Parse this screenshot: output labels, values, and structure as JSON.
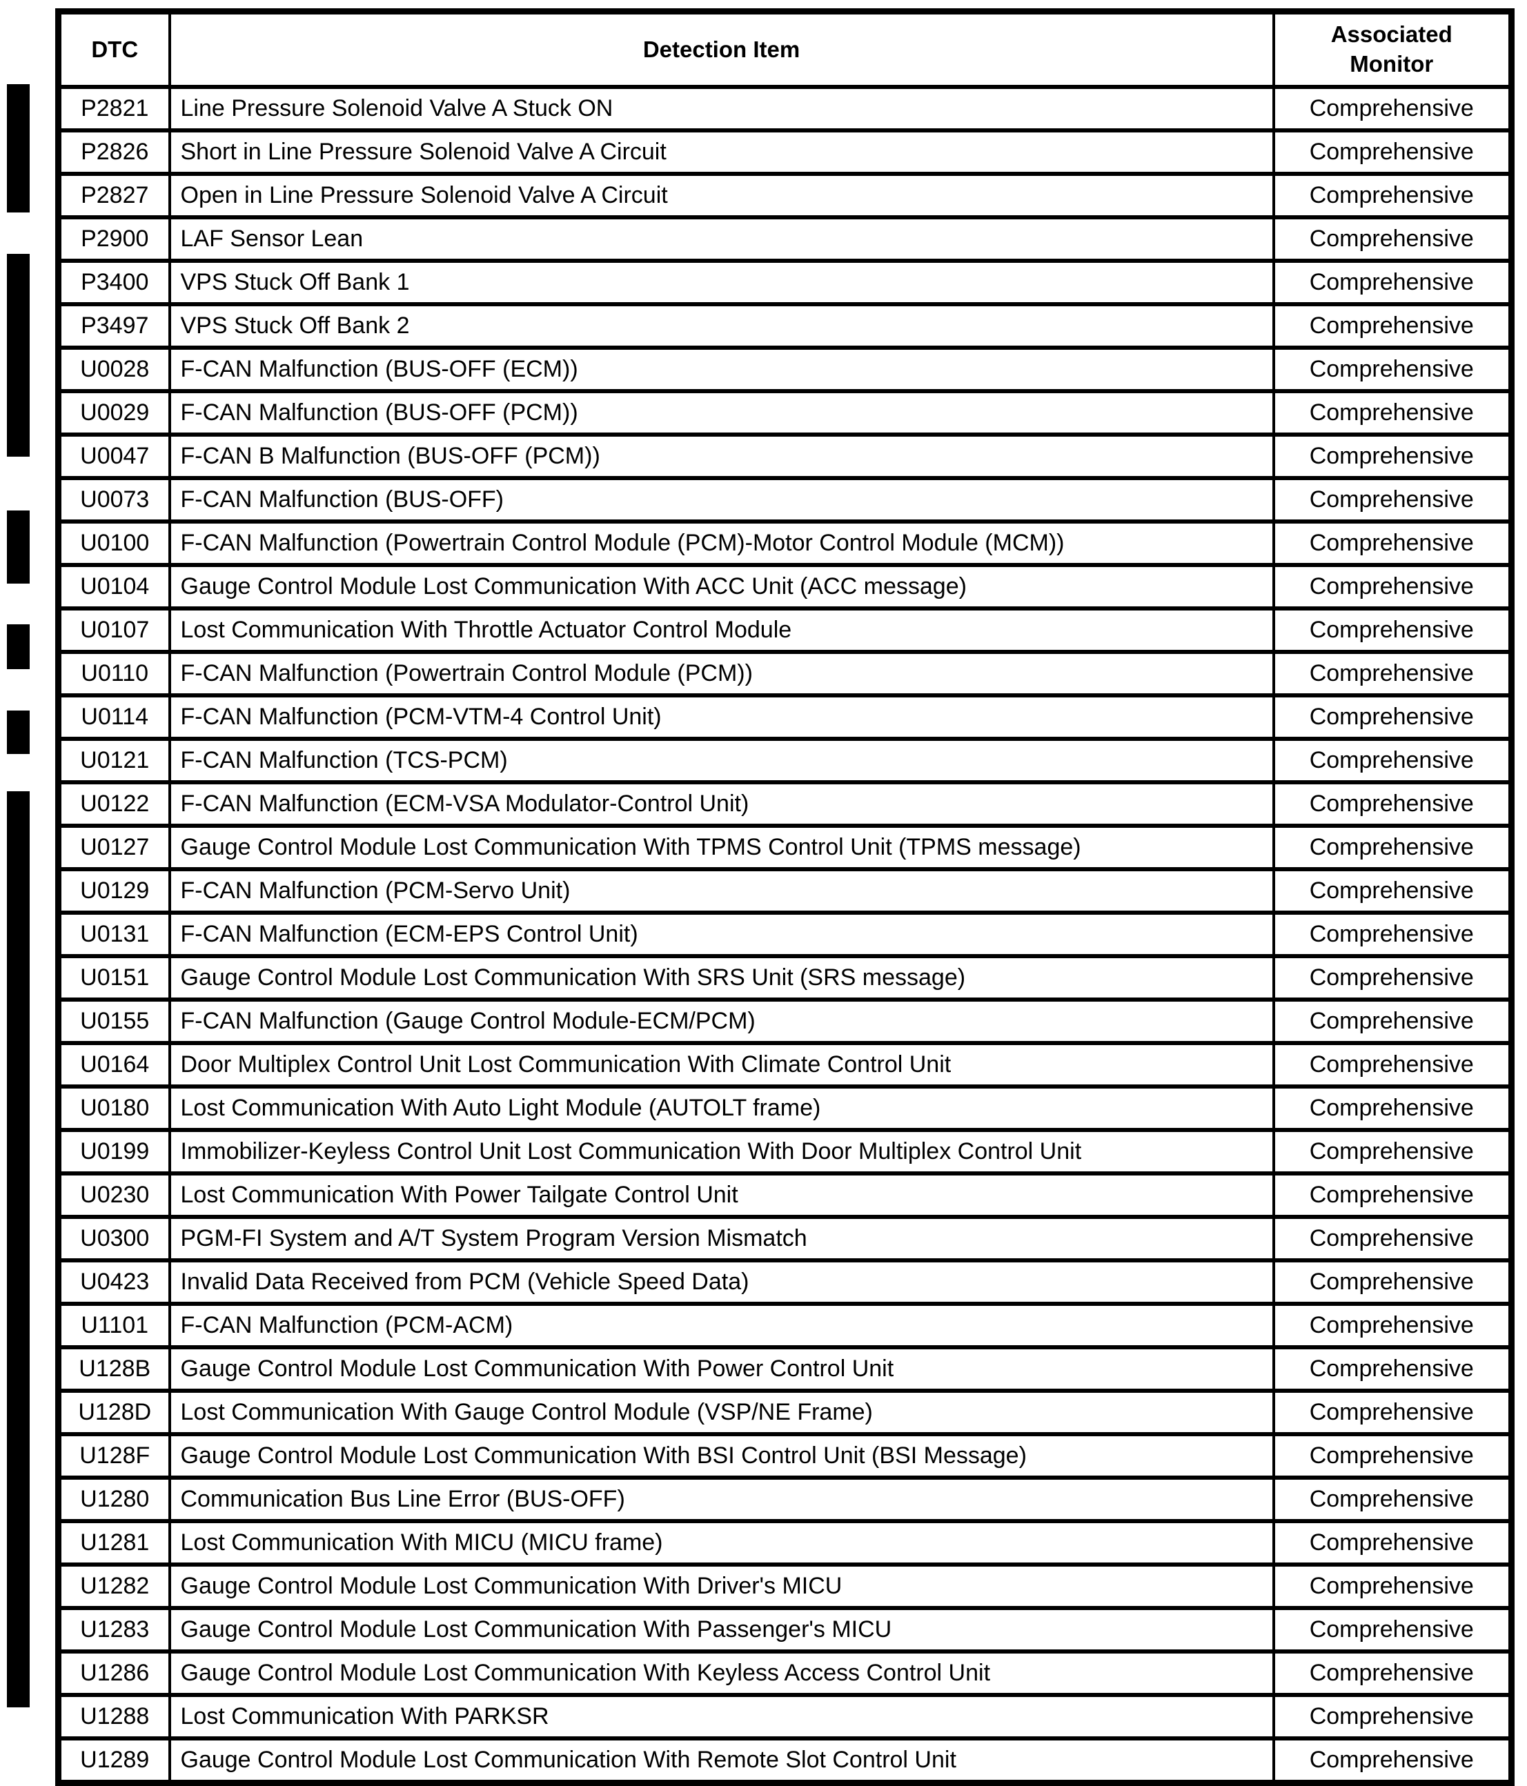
{
  "table": {
    "header": {
      "dtc": "DTC",
      "detection_item": "Detection Item",
      "associated_monitor": "Associated\nMonitor"
    },
    "rows": [
      {
        "dtc": "P2821",
        "item": "Line Pressure Solenoid Valve A Stuck ON",
        "monitor": "Comprehensive"
      },
      {
        "dtc": "P2826",
        "item": "Short in Line Pressure Solenoid Valve A Circuit",
        "monitor": "Comprehensive"
      },
      {
        "dtc": "P2827",
        "item": "Open in Line Pressure Solenoid Valve A Circuit",
        "monitor": "Comprehensive"
      },
      {
        "dtc": "P2900",
        "item": "LAF Sensor Lean",
        "monitor": "Comprehensive"
      },
      {
        "dtc": "P3400",
        "item": "VPS Stuck Off Bank 1",
        "monitor": "Comprehensive"
      },
      {
        "dtc": "P3497",
        "item": "VPS Stuck Off Bank 2",
        "monitor": "Comprehensive"
      },
      {
        "dtc": "U0028",
        "item": "F-CAN Malfunction (BUS-OFF (ECM))",
        "monitor": "Comprehensive"
      },
      {
        "dtc": "U0029",
        "item": "F-CAN Malfunction (BUS-OFF (PCM))",
        "monitor": "Comprehensive"
      },
      {
        "dtc": "U0047",
        "item": "F-CAN B Malfunction (BUS-OFF (PCM))",
        "monitor": "Comprehensive"
      },
      {
        "dtc": "U0073",
        "item": "F-CAN Malfunction (BUS-OFF)",
        "monitor": "Comprehensive"
      },
      {
        "dtc": "U0100",
        "item": "F-CAN Malfunction (Powertrain Control Module (PCM)-Motor Control Module (MCM))",
        "monitor": "Comprehensive"
      },
      {
        "dtc": "U0104",
        "item": "Gauge Control Module Lost Communication With ACC Unit (ACC message)",
        "monitor": "Comprehensive"
      },
      {
        "dtc": "U0107",
        "item": "Lost Communication With Throttle Actuator Control Module",
        "monitor": "Comprehensive"
      },
      {
        "dtc": "U0110",
        "item": "F-CAN Malfunction (Powertrain Control Module (PCM))",
        "monitor": "Comprehensive"
      },
      {
        "dtc": "U0114",
        "item": "F-CAN Malfunction (PCM-VTM-4 Control Unit)",
        "monitor": "Comprehensive"
      },
      {
        "dtc": "U0121",
        "item": "F-CAN Malfunction (TCS-PCM)",
        "monitor": "Comprehensive"
      },
      {
        "dtc": "U0122",
        "item": "F-CAN Malfunction (ECM-VSA Modulator-Control Unit)",
        "monitor": "Comprehensive"
      },
      {
        "dtc": "U0127",
        "item": "Gauge Control Module Lost Communication With TPMS Control Unit (TPMS message)",
        "monitor": "Comprehensive"
      },
      {
        "dtc": "U0129",
        "item": "F-CAN Malfunction (PCM-Servo Unit)",
        "monitor": "Comprehensive"
      },
      {
        "dtc": "U0131",
        "item": "F-CAN Malfunction (ECM-EPS Control Unit)",
        "monitor": "Comprehensive"
      },
      {
        "dtc": "U0151",
        "item": "Gauge Control Module Lost Communication With SRS Unit (SRS message)",
        "monitor": "Comprehensive"
      },
      {
        "dtc": "U0155",
        "item": "F-CAN Malfunction (Gauge Control Module-ECM/PCM)",
        "monitor": "Comprehensive"
      },
      {
        "dtc": "U0164",
        "item": "Door Multiplex Control Unit Lost Communication With Climate Control Unit",
        "monitor": "Comprehensive"
      },
      {
        "dtc": "U0180",
        "item": "Lost Communication With Auto Light Module (AUTOLT frame)",
        "monitor": "Comprehensive"
      },
      {
        "dtc": "U0199",
        "item": "Immobilizer-Keyless Control Unit Lost Communication With Door Multiplex Control Unit",
        "monitor": "Comprehensive"
      },
      {
        "dtc": "U0230",
        "item": "Lost Communication With Power Tailgate Control Unit",
        "monitor": "Comprehensive"
      },
      {
        "dtc": "U0300",
        "item": "PGM-FI System and A/T System Program Version Mismatch",
        "monitor": "Comprehensive"
      },
      {
        "dtc": "U0423",
        "item": "Invalid Data Received from PCM (Vehicle Speed Data)",
        "monitor": "Comprehensive"
      },
      {
        "dtc": "U1101",
        "item": "F-CAN Malfunction (PCM-ACM)",
        "monitor": "Comprehensive"
      },
      {
        "dtc": "U128B",
        "item": "Gauge Control Module Lost Communication With Power Control Unit",
        "monitor": "Comprehensive"
      },
      {
        "dtc": "U128D",
        "item": "Lost Communication With Gauge Control Module (VSP/NE Frame)",
        "monitor": "Comprehensive"
      },
      {
        "dtc": "U128F",
        "item": "Gauge Control Module Lost Communication With BSI Control Unit (BSI Message)",
        "monitor": "Comprehensive"
      },
      {
        "dtc": "U1280",
        "item": "Communication Bus Line Error (BUS-OFF)",
        "monitor": "Comprehensive"
      },
      {
        "dtc": "U1281",
        "item": "Lost Communication With MICU (MICU frame)",
        "monitor": "Comprehensive"
      },
      {
        "dtc": "U1282",
        "item": "Gauge Control Module Lost Communication With Driver's MICU",
        "monitor": "Comprehensive"
      },
      {
        "dtc": "U1283",
        "item": "Gauge Control Module Lost Communication With Passenger's MICU",
        "monitor": "Comprehensive"
      },
      {
        "dtc": "U1286",
        "item": "Gauge Control Module Lost Communication With Keyless Access Control Unit",
        "monitor": "Comprehensive"
      },
      {
        "dtc": "U1288",
        "item": "Lost Communication With PARKSR",
        "monitor": "Comprehensive"
      },
      {
        "dtc": "U1289",
        "item": "Gauge Control Module Lost Communication With Remote Slot Control Unit",
        "monitor": "Comprehensive"
      }
    ]
  }
}
